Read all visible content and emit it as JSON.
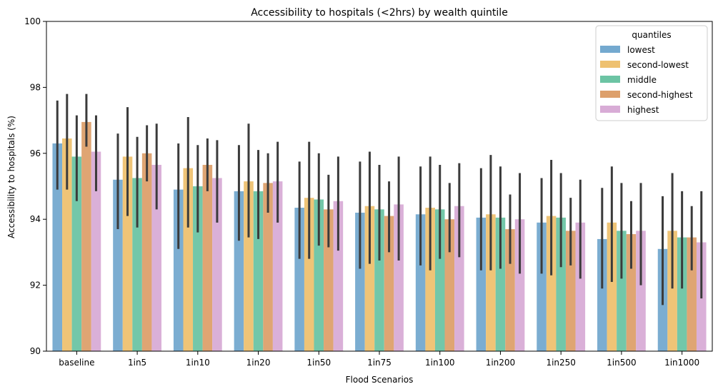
{
  "chart_data": {
    "type": "bar",
    "title": "Accessibility to hospitals (<2hrs) by wealth quintile",
    "xlabel": "Flood Scenarios",
    "ylabel": "Accessibility to hospitals (%)",
    "ylim": [
      90,
      100
    ],
    "yticks": [
      90,
      92,
      94,
      96,
      98,
      100
    ],
    "categories": [
      "baseline",
      "1in5",
      "1in10",
      "1in20",
      "1in50",
      "1in75",
      "1in100",
      "1in200",
      "1in250",
      "1in500",
      "1in1000"
    ],
    "legend": {
      "title": "quantiles",
      "position": "top-right"
    },
    "series": [
      {
        "name": "lowest",
        "color": "#74a9cf",
        "values": [
          96.3,
          95.2,
          94.9,
          94.85,
          94.35,
          94.2,
          94.15,
          94.05,
          93.9,
          93.4,
          93.1
        ],
        "err_low": [
          94.9,
          93.7,
          93.1,
          93.35,
          92.8,
          92.5,
          92.6,
          92.45,
          92.35,
          91.9,
          91.4
        ],
        "err_high": [
          97.6,
          96.6,
          96.3,
          96.25,
          95.75,
          95.75,
          95.6,
          95.55,
          95.25,
          94.95,
          94.7
        ]
      },
      {
        "name": "second-lowest",
        "color": "#eec170",
        "values": [
          96.45,
          95.9,
          95.55,
          95.15,
          94.65,
          94.4,
          94.35,
          94.15,
          94.1,
          93.9,
          93.65
        ],
        "err_low": [
          94.9,
          94.1,
          93.75,
          93.45,
          92.8,
          92.65,
          92.45,
          92.45,
          92.3,
          92.1,
          91.9
        ],
        "err_high": [
          97.8,
          97.4,
          97.1,
          96.9,
          96.35,
          96.05,
          95.9,
          95.95,
          95.8,
          95.6,
          95.4
        ]
      },
      {
        "name": "middle",
        "color": "#6cc4a4",
        "values": [
          95.9,
          95.25,
          95.0,
          94.85,
          94.6,
          94.3,
          94.3,
          94.05,
          94.05,
          93.65,
          93.45
        ],
        "err_low": [
          94.55,
          93.75,
          93.6,
          93.4,
          93.2,
          92.75,
          92.8,
          92.5,
          92.55,
          92.2,
          91.9
        ],
        "err_high": [
          97.15,
          96.5,
          96.25,
          96.1,
          96.0,
          95.65,
          95.65,
          95.6,
          95.4,
          95.1,
          94.85
        ]
      },
      {
        "name": "second-highest",
        "color": "#dda06c",
        "values": [
          96.95,
          96.0,
          95.65,
          95.1,
          94.3,
          94.1,
          94.0,
          93.7,
          93.65,
          93.55,
          93.45
        ],
        "err_low": [
          96.2,
          95.15,
          94.85,
          94.2,
          93.15,
          93.0,
          93.0,
          92.65,
          92.6,
          92.5,
          92.45
        ],
        "err_high": [
          97.8,
          96.85,
          96.45,
          96.0,
          95.35,
          95.15,
          95.1,
          94.75,
          94.65,
          94.55,
          94.4
        ]
      },
      {
        "name": "highest",
        "color": "#d8acd6",
        "values": [
          96.05,
          95.65,
          95.25,
          95.15,
          94.55,
          94.45,
          94.4,
          94.0,
          93.9,
          93.65,
          93.3
        ],
        "err_low": [
          94.85,
          94.3,
          93.9,
          93.9,
          93.05,
          92.75,
          92.85,
          92.35,
          92.2,
          92.0,
          91.6
        ],
        "err_high": [
          97.15,
          96.9,
          96.4,
          96.35,
          95.9,
          95.9,
          95.7,
          95.4,
          95.2,
          95.1,
          94.85
        ]
      }
    ]
  }
}
